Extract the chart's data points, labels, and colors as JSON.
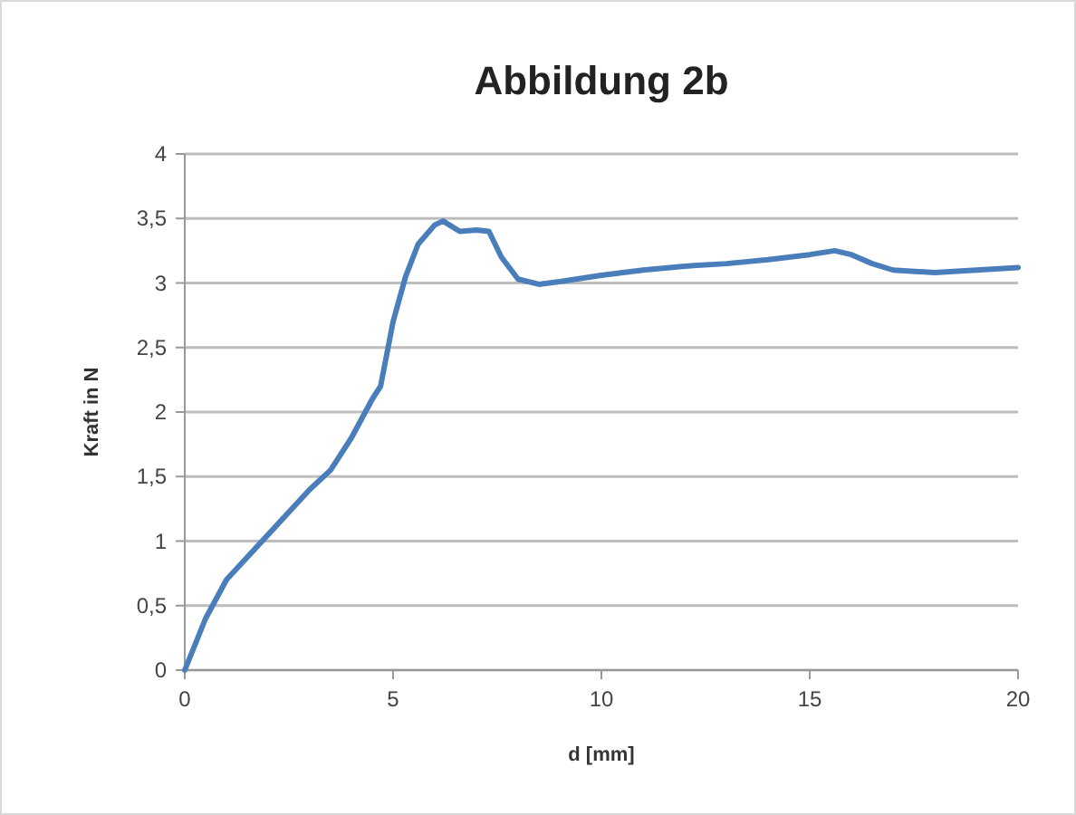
{
  "chart_data": {
    "type": "line",
    "title": "Abbildung 2b",
    "xlabel": "d [mm]",
    "ylabel": "Kraft in N",
    "xlim": [
      0,
      20
    ],
    "xticks": [
      0,
      5,
      10,
      15,
      20
    ],
    "ylim": [
      0,
      4
    ],
    "yticks": [
      0,
      {
        "value": 0.5,
        "label": "0,5"
      },
      1,
      {
        "value": 1.5,
        "label": "1,5"
      },
      2,
      {
        "value": 2.5,
        "label": "2,5"
      },
      3,
      {
        "value": 3.5,
        "label": "3,5"
      },
      4
    ],
    "grid": "y",
    "marker": "none",
    "series": [
      {
        "color": "#4a7ebb",
        "x": [
          0,
          0.5,
          1,
          2,
          3,
          3.5,
          4,
          4.5,
          4.7,
          5,
          5.3,
          5.6,
          6,
          6.2,
          6.6,
          7,
          7.3,
          7.6,
          8,
          8.5,
          9,
          10,
          11,
          12,
          13,
          14,
          15,
          15.6,
          16,
          16.5,
          17,
          18,
          19,
          20
        ],
        "values": [
          0,
          0.4,
          0.7,
          1.05,
          1.4,
          1.55,
          1.8,
          2.1,
          2.2,
          2.7,
          3.05,
          3.3,
          3.45,
          3.48,
          3.4,
          3.41,
          3.4,
          3.2,
          3.03,
          2.99,
          3.01,
          3.06,
          3.1,
          3.13,
          3.15,
          3.18,
          3.22,
          3.25,
          3.22,
          3.15,
          3.1,
          3.08,
          3.1,
          3.12
        ]
      }
    ]
  }
}
